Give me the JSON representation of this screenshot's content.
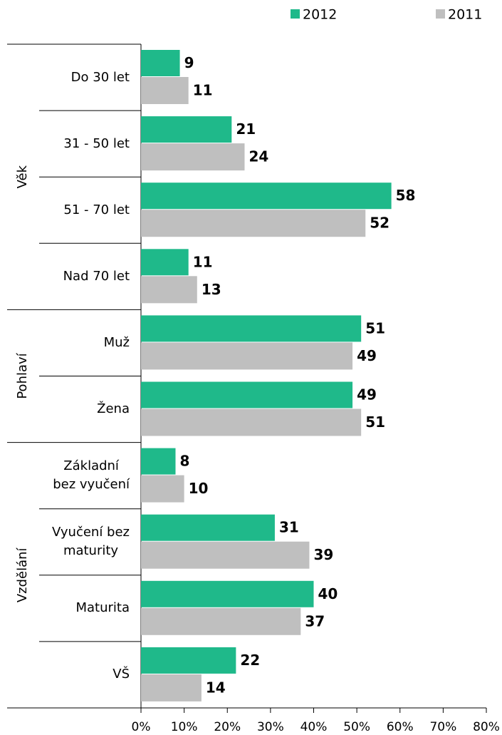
{
  "chart_data": {
    "type": "hbar",
    "groups": [
      {
        "name": "Věk",
        "categories": [
          "Do 30 let",
          "31 - 50 let",
          "51 - 70 let",
          "Nad 70 let"
        ]
      },
      {
        "name": "Pohlaví",
        "categories": [
          "Muž",
          "Žena"
        ]
      },
      {
        "name": "Vzdělání",
        "categories": [
          "Základní\nbez vyučení",
          "Vyučení bez\nmaturity",
          "Maturita",
          "VŠ"
        ]
      }
    ],
    "series": [
      {
        "name": "2012",
        "color": "#1fb98a",
        "values": [
          9,
          21,
          58,
          11,
          51,
          49,
          8,
          31,
          40,
          22
        ]
      },
      {
        "name": "2011",
        "color": "#bfbfbf",
        "values": [
          11,
          24,
          52,
          13,
          49,
          51,
          10,
          39,
          37,
          14
        ]
      }
    ],
    "xlim": [
      0,
      80
    ],
    "xticks": [
      {
        "value": 0,
        "label": "0%"
      },
      {
        "value": 10,
        "label": "10%"
      },
      {
        "value": 20,
        "label": "20%"
      },
      {
        "value": 30,
        "label": "30%"
      },
      {
        "value": 40,
        "label": "40%"
      },
      {
        "value": 50,
        "label": "50%"
      },
      {
        "value": 60,
        "label": "60%"
      },
      {
        "value": 70,
        "label": "70%"
      },
      {
        "value": 80,
        "label": "80%"
      }
    ],
    "legend": "top-right"
  }
}
